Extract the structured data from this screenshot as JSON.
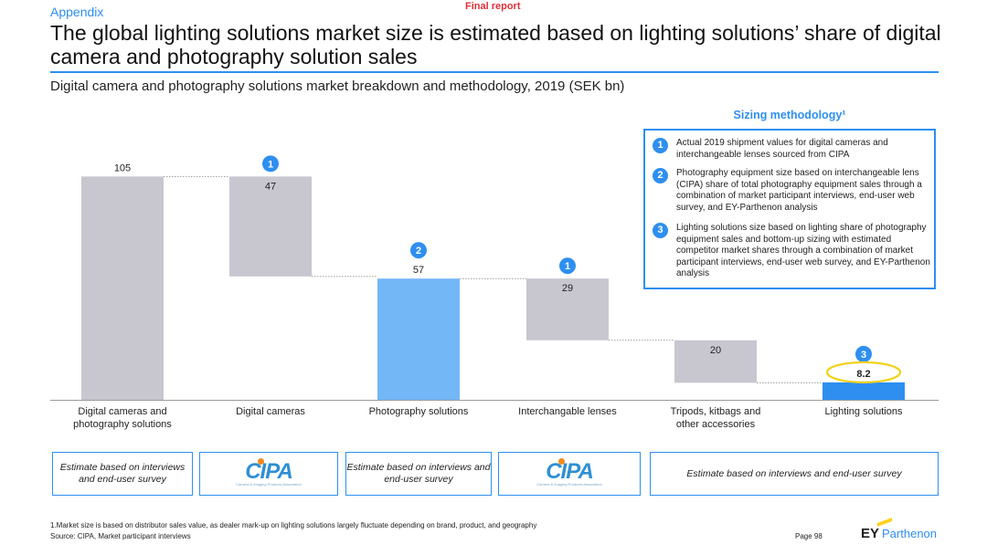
{
  "header": {
    "section": "Appendix",
    "report_label": "Final report",
    "title": "The global lighting solutions market size is estimated based on lighting solutions’ share of digital camera and photography solution sales",
    "subtitle": "Digital camera and photography solutions market breakdown and methodology, 2019 (SEK bn)"
  },
  "chart_data": {
    "type": "bar",
    "subtype": "waterfall",
    "categories": [
      "Digital cameras and photography solutions",
      "Digital cameras",
      "Photography solutions",
      "Interchangable lenses",
      "Tripods, kitbags and other accessories",
      "Lighting solutions"
    ],
    "values": [
      105,
      47,
      57,
      29,
      20,
      8.2
    ],
    "labels": [
      "105",
      "47",
      "57",
      "29",
      "20",
      "8.2"
    ],
    "kinds": [
      "total",
      "decrease",
      "subtotal",
      "decrease",
      "decrease",
      "subtotal"
    ],
    "markers": [
      "",
      "1",
      "2",
      "1",
      "",
      "3"
    ],
    "colors": {
      "total": "#c8c7d0",
      "decrease": "#c8c7d0",
      "subtotal": "#74b7f7",
      "highlight": "#2e8ff0",
      "marker": "#2e8ff0",
      "ellipse": "#f0d21a"
    },
    "ylim": [
      0,
      110
    ]
  },
  "methodology": {
    "heading": "Sizing methodology¹",
    "items": [
      {
        "num": "1",
        "text": "Actual 2019 shipment values for digital cameras and interchangeable lenses sourced from CIPA"
      },
      {
        "num": "2",
        "text": "Photography equipment size based on interchangeable lens (CIPA) share of total photography equipment sales through a combination of market participant interviews, end-user web survey, and EY-Parthenon analysis"
      },
      {
        "num": "3",
        "text": "Lighting solutions size based on lighting share of photography equipment sales and bottom-up sizing with estimated competitor market shares through a combination of market participant interviews, end-user web survey, and EY-Parthenon analysis"
      }
    ]
  },
  "sources": {
    "estimate_short": "Estimate based on interviews and end-user survey",
    "estimate_long": "Estimate based on interviews and end-user survey",
    "cipa_logo": "CIPA",
    "cipa_sub": "Camera & Imaging Products Association"
  },
  "footer": {
    "footnote": "1.Market size is based on distributor sales value, as dealer mark-up on lighting solutions largely fluctuate depending on brand, product, and geography",
    "source": "Source: CIPA, Market participant interviews",
    "page": "Page 98",
    "brand_ey": "EY",
    "brand_name": "Parthenon"
  }
}
